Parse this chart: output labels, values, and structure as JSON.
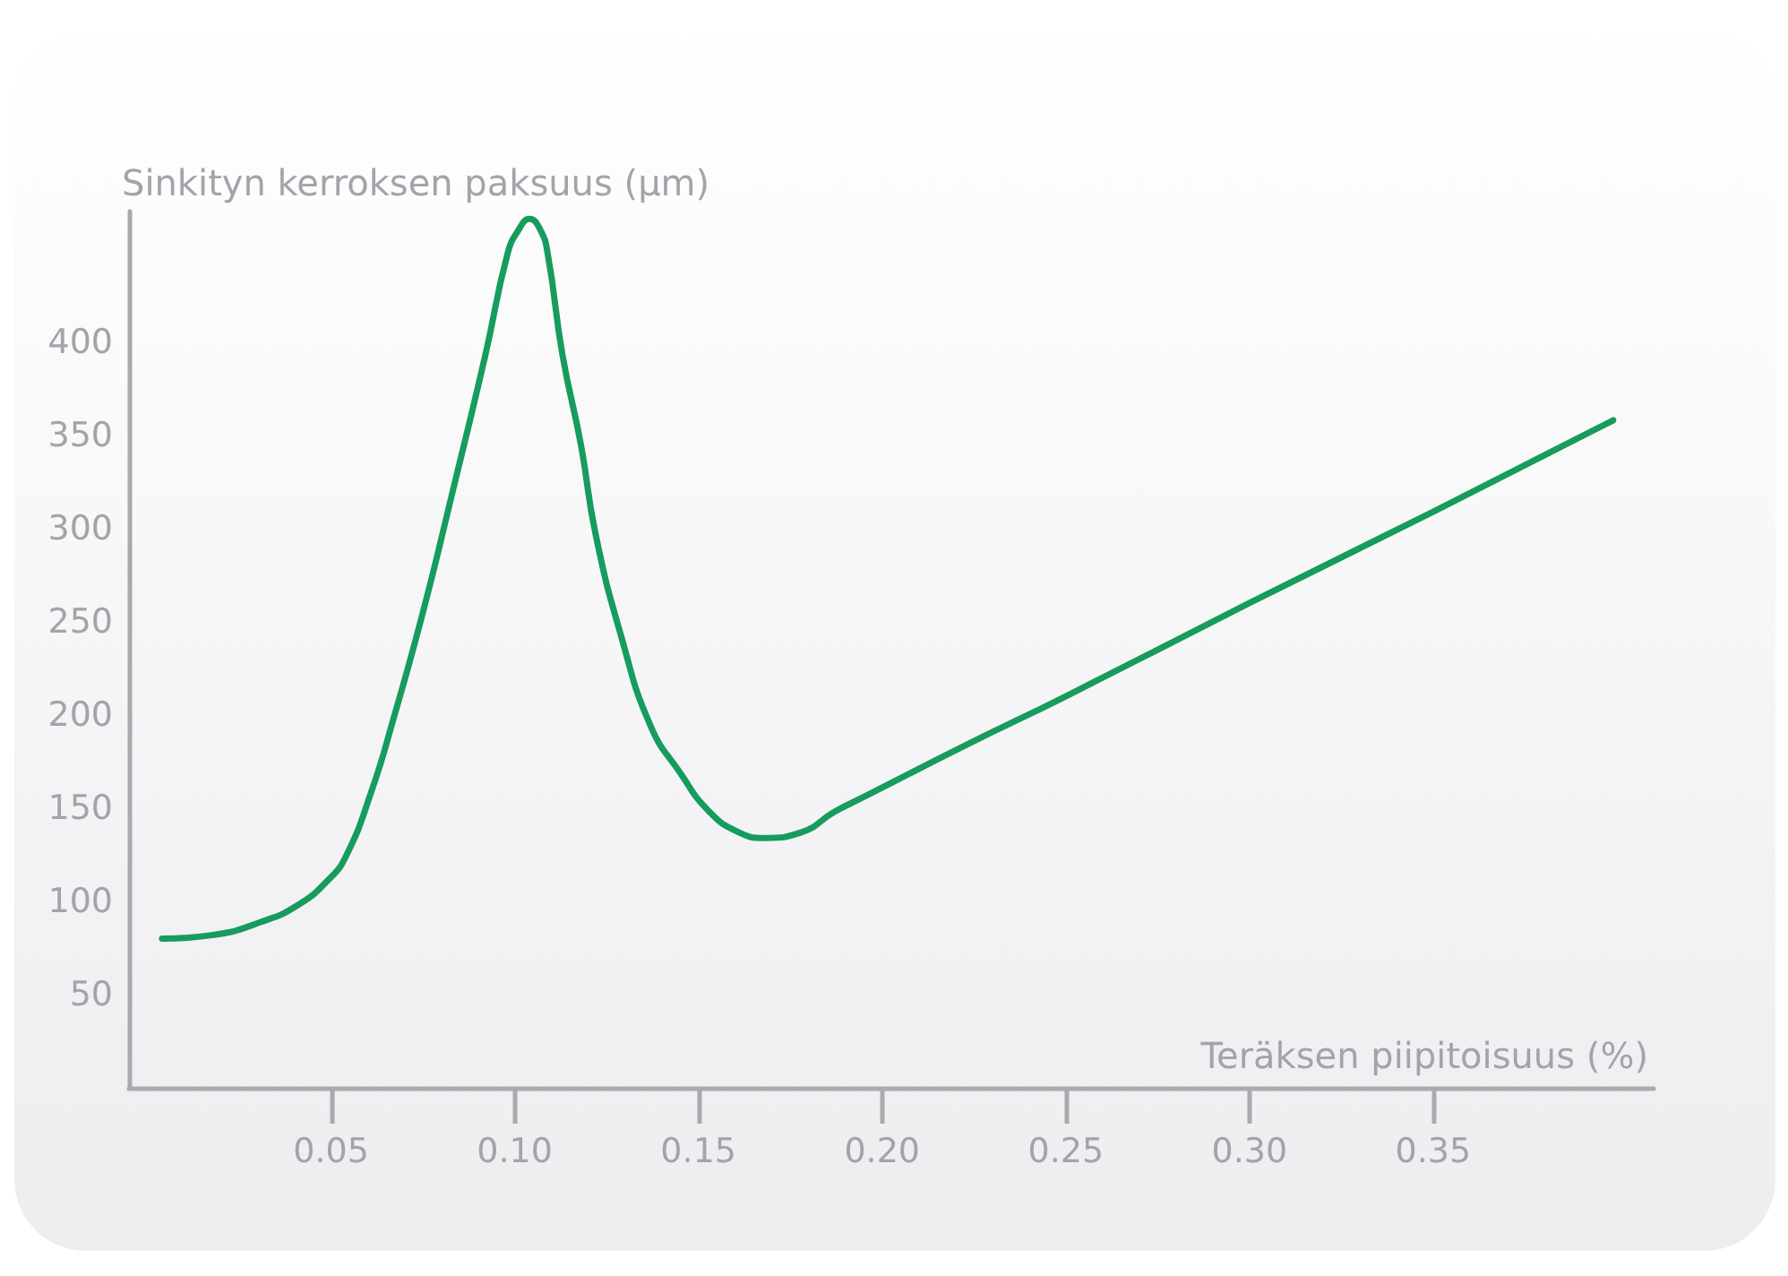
{
  "chart_data": {
    "type": "line",
    "xlabel": "Teräksen piipitoisuus (%)",
    "ylabel": "Sinkityn kerroksen paksuus (µm)",
    "x": [
      0.004,
      0.018,
      0.031,
      0.041,
      0.049,
      0.054,
      0.061,
      0.067,
      0.075,
      0.083,
      0.092,
      0.098,
      0.101,
      0.104,
      0.107,
      0.109,
      0.113,
      0.118,
      0.122,
      0.129,
      0.137,
      0.145,
      0.153,
      0.161,
      0.168,
      0.178,
      0.187,
      0.194,
      0.223,
      0.25,
      0.3,
      0.35,
      0.399
    ],
    "series": [
      {
        "color": "#169c5c",
        "values": [
          80,
          82,
          89,
          98,
          111,
          124,
          159,
          198,
          255,
          319,
          393,
          447,
          460,
          466,
          460,
          447,
          393,
          345,
          297,
          242,
          194,
          169,
          148,
          137,
          134,
          137,
          148,
          155,
          184,
          210,
          260,
          309,
          358
        ]
      }
    ],
    "xlim": [
      -0.005,
      0.41
    ],
    "ylim": [
      0,
      470
    ],
    "xticks": [
      0.05,
      {
        "value": 0.1,
        "label": "0.10"
      },
      0.15,
      {
        "value": 0.2,
        "label": "0.20"
      },
      0.25,
      {
        "value": 0.3,
        "label": "0.30"
      },
      0.35
    ],
    "yticks": [
      50,
      100,
      150,
      200,
      250,
      300,
      350,
      400
    ]
  }
}
